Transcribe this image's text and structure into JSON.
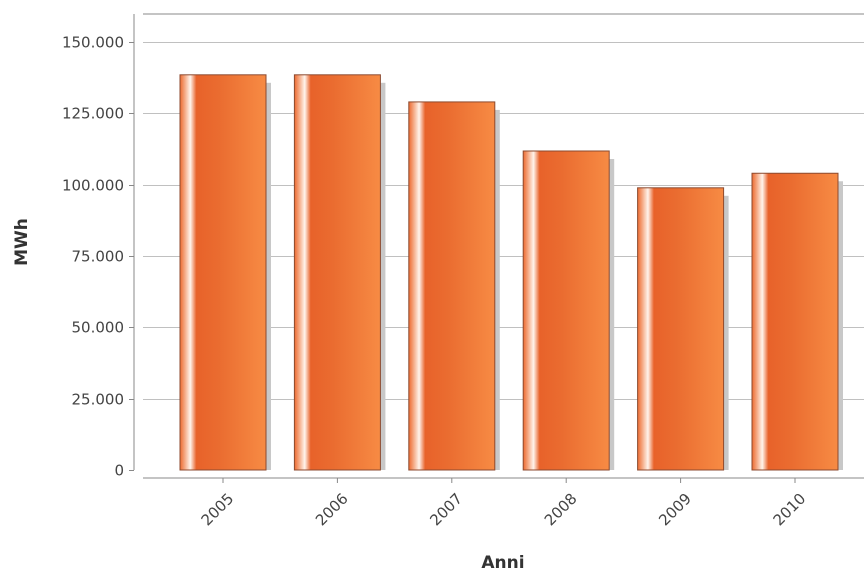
{
  "chart_data": {
    "type": "bar",
    "title": "",
    "xlabel": "Anni",
    "ylabel": "MWh",
    "categories": [
      "2005",
      "2006",
      "2007",
      "2008",
      "2009",
      "2010"
    ],
    "values": [
      138500,
      138500,
      129000,
      111800,
      98900,
      104000
    ],
    "ylim": [
      0,
      160000
    ],
    "yticks": [
      0,
      25000,
      50000,
      75000,
      100000,
      125000,
      150000
    ],
    "ytick_labels": [
      "0",
      "25.000",
      "50.000",
      "75.000",
      "100.000",
      "125.000",
      "150.000"
    ],
    "grid": true,
    "legend": "none",
    "colors": {
      "bar_dark": "#e8622a",
      "bar_light": "#f58a45",
      "bar_border": "#8c4a2f",
      "shadow": "#c8c8c8",
      "grid": "#c0c0c0",
      "axis": "#888888"
    }
  }
}
